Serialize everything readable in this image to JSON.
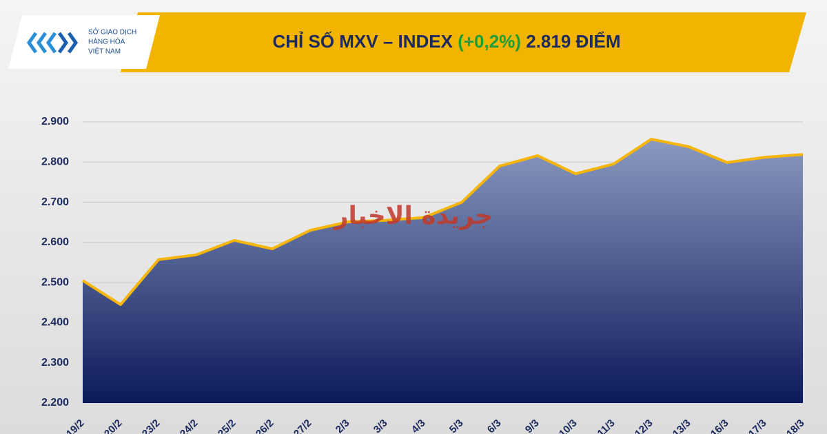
{
  "chart_data": {
    "type": "area",
    "title": {
      "main": "CHỈ SỐ MXV – INDEX",
      "change": "(+0,2%)",
      "level": "2.819 ĐIỂM"
    },
    "logo": [
      "SỞ GIAO DỊCH",
      "HÀNG HÓA",
      "VIỆT NAM"
    ],
    "watermark": "جريدة الاخبار",
    "categories": [
      "19/2",
      "20/2",
      "23/2",
      "24/2",
      "25/2",
      "26/2",
      "27/2",
      "2/3",
      "3/3",
      "4/3",
      "5/3",
      "6/3",
      "9/3",
      "10/3",
      "11/3",
      "12/3",
      "13/3",
      "16/3",
      "17/3",
      "18/3"
    ],
    "values": [
      2505,
      2445,
      2557,
      2569,
      2605,
      2584,
      2630,
      2651,
      2655,
      2662,
      2700,
      2790,
      2816,
      2771,
      2795,
      2857,
      2838,
      2799,
      2812,
      2819
    ],
    "color": "#f5b50a",
    "fill_top": "#8a9ac0",
    "fill_bottom": "#0b1a5a",
    "ylim": [
      2200,
      2900
    ],
    "yticks": [
      {
        "value": 2200,
        "label": "2.200"
      },
      {
        "value": 2300,
        "label": "2.300"
      },
      {
        "value": 2400,
        "label": "2.400"
      },
      {
        "value": 2500,
        "label": "2.500"
      },
      {
        "value": 2600,
        "label": "2.600"
      },
      {
        "value": 2700,
        "label": "2.700"
      },
      {
        "value": 2800,
        "label": "2.800"
      },
      {
        "value": 2900,
        "label": "2.900"
      }
    ],
    "grid": true
  }
}
